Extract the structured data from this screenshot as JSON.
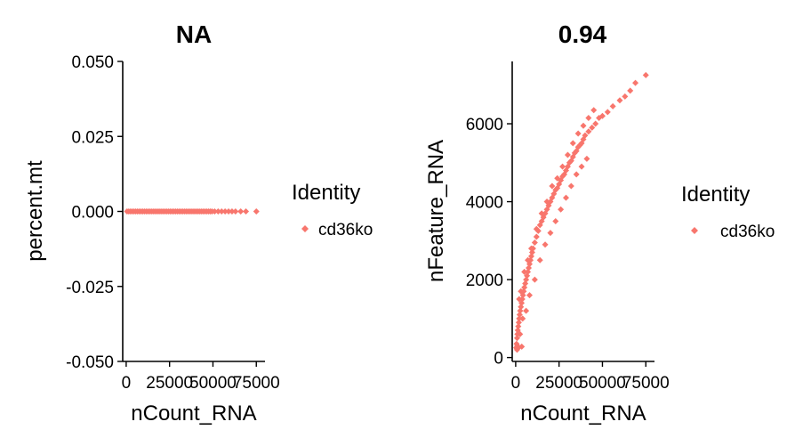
{
  "chart_data": [
    {
      "type": "scatter",
      "title": "NA",
      "xlabel": "nCount_RNA",
      "ylabel": "percent.mt",
      "xlim": [
        -2000,
        80000
      ],
      "ylim": [
        -0.05,
        0.05
      ],
      "x_ticks": [
        0,
        25000,
        50000,
        75000
      ],
      "x_tick_labels": [
        "0",
        "25000",
        "50000",
        "75000"
      ],
      "y_ticks": [
        -0.05,
        -0.025,
        0,
        0.025,
        0.05
      ],
      "y_tick_labels": [
        "-0.050",
        "-0.025",
        "0.000",
        "0.025",
        "0.050"
      ],
      "legend": {
        "title": "Identity",
        "entries": [
          "cd36ko"
        ],
        "placement": "right"
      },
      "color": "#f8766d",
      "series": [
        {
          "name": "cd36ko",
          "x": [
            500,
            1500,
            2500,
            3500,
            4500,
            5500,
            6500,
            7500,
            8500,
            9500,
            10500,
            11500,
            12500,
            13500,
            14500,
            15500,
            16500,
            17500,
            18500,
            19500,
            20500,
            21500,
            22500,
            23500,
            24500,
            25500,
            26500,
            27500,
            28500,
            29500,
            30500,
            31500,
            32500,
            33500,
            34500,
            35500,
            36500,
            37500,
            38500,
            39500,
            40500,
            41500,
            42500,
            43500,
            44500,
            45500,
            46500,
            47500,
            48500,
            49500,
            51000,
            53000,
            55000,
            57000,
            59000,
            61000,
            63000,
            66000,
            69000,
            75000
          ],
          "y": [
            0,
            0,
            0,
            0,
            0,
            0,
            0,
            0,
            0,
            0,
            0,
            0,
            0,
            0,
            0,
            0,
            0,
            0,
            0,
            0,
            0,
            0,
            0,
            0,
            0,
            0,
            0,
            0,
            0,
            0,
            0,
            0,
            0,
            0,
            0,
            0,
            0,
            0,
            0,
            0,
            0,
            0,
            0,
            0,
            0,
            0,
            0,
            0,
            0,
            0,
            0,
            0,
            0,
            0,
            0,
            0,
            0,
            0,
            0,
            0
          ]
        }
      ]
    },
    {
      "type": "scatter",
      "title": "0.94",
      "xlabel": "nCount_RNA",
      "ylabel": "nFeature_RNA",
      "xlim": [
        -2000,
        80000
      ],
      "ylim": [
        -100,
        7600
      ],
      "x_ticks": [
        0,
        25000,
        50000,
        75000
      ],
      "x_tick_labels": [
        "0",
        "25000",
        "50000",
        "75000"
      ],
      "y_ticks": [
        0,
        2000,
        4000,
        6000
      ],
      "y_tick_labels": [
        "0",
        "2000",
        "4000",
        "6000"
      ],
      "legend": {
        "title": "Identity",
        "entries": [
          "cd36ko"
        ],
        "placement": "right"
      },
      "color": "#f8766d",
      "series": [
        {
          "name": "cd36ko",
          "x": [
            300,
            500,
            800,
            1000,
            1200,
            1500,
            1800,
            2000,
            2300,
            2600,
            3000,
            3400,
            3800,
            4200,
            4600,
            5000,
            5500,
            6000,
            6500,
            7000,
            7500,
            8000,
            8500,
            9000,
            9500,
            10000,
            11000,
            12000,
            13000,
            14000,
            15000,
            16000,
            17000,
            18000,
            19000,
            20000,
            21000,
            22000,
            23000,
            24000,
            25000,
            26000,
            27000,
            28000,
            29000,
            30000,
            31000,
            32000,
            33000,
            34000,
            35000,
            36000,
            37000,
            38000,
            39000,
            40000,
            42000,
            44000,
            46000,
            48000,
            50000,
            53000,
            56000,
            60000,
            63000,
            66000,
            69000,
            75000,
            2000,
            3000,
            5000,
            7000,
            9000,
            12000,
            15000,
            18000,
            21000,
            24000,
            27000,
            30000,
            33000,
            36000,
            39000,
            42000,
            45000,
            1000,
            2500,
            4000,
            6000,
            8000,
            11000,
            14000,
            17000,
            20000,
            23000,
            26000,
            29000,
            32000,
            35000,
            38000,
            41000,
            3500,
            1500,
            800
          ],
          "y": [
            250,
            350,
            500,
            600,
            700,
            800,
            900,
            1000,
            1100,
            1200,
            1300,
            1400,
            1500,
            1600,
            1700,
            1800,
            1900,
            2000,
            2100,
            2200,
            2300,
            2400,
            2500,
            2600,
            2700,
            2800,
            2950,
            3100,
            3250,
            3400,
            3500,
            3600,
            3700,
            3800,
            3900,
            4000,
            4100,
            4200,
            4300,
            4350,
            4450,
            4550,
            4650,
            4700,
            4800,
            4900,
            5000,
            5050,
            5150,
            5250,
            5300,
            5400,
            5450,
            5500,
            5600,
            5700,
            5800,
            5900,
            6000,
            6150,
            6200,
            6300,
            6450,
            6600,
            6700,
            6850,
            7050,
            7250,
            1500,
            1700,
            2200,
            2500,
            2800,
            3300,
            3700,
            4000,
            4400,
            4600,
            4900,
            5200,
            5500,
            5750,
            5950,
            6150,
            6350,
            300,
            600,
            1000,
            1200,
            1600,
            2000,
            2500,
            2900,
            3200,
            3500,
            3800,
            4100,
            4400,
            4700,
            4900,
            5100,
            280,
            250,
            200
          ]
        }
      ]
    }
  ]
}
